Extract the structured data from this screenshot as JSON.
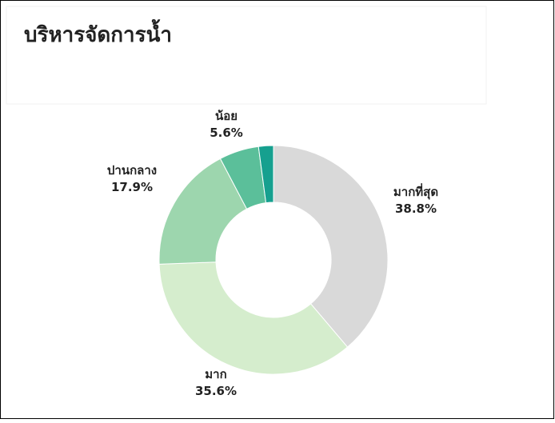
{
  "chart_data": {
    "type": "donut",
    "title": "บริหารจัดการน้ำ",
    "categories": [
      "มากที่สุด",
      "มาก",
      "ปานกลาง",
      "น้อย",
      null
    ],
    "values": [
      38.8,
      35.6,
      17.9,
      5.6,
      2.1
    ],
    "value_labels": [
      "38.8%",
      "35.6%",
      "17.9%",
      "5.6%",
      null
    ],
    "colors": [
      "#d9d9d9",
      "#d5edcd",
      "#9dd6ae",
      "#5bbf9a",
      "#16a08f"
    ]
  }
}
